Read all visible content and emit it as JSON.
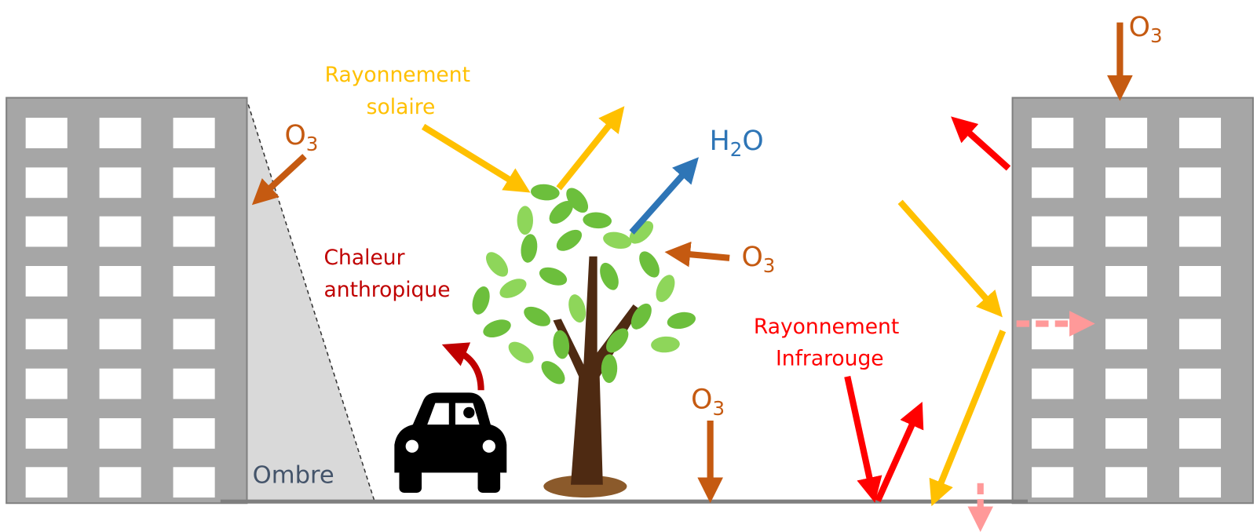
{
  "labels": {
    "solar": {
      "lines": [
        "Rayonnement",
        "solaire"
      ]
    },
    "o3_top_right": {
      "base": "O",
      "sub": "3"
    },
    "o3_left": {
      "base": "O",
      "sub": "3"
    },
    "h2o": {
      "base": "H",
      "sub": "2",
      "after": "O"
    },
    "o3_tree": {
      "base": "O",
      "sub": "3"
    },
    "o3_ground": {
      "base": "O",
      "sub": "3"
    },
    "anthropic_heat": {
      "lines": [
        "Chaleur",
        "anthropique"
      ]
    },
    "infrared": {
      "lines": [
        "Rayonnement",
        "Infrarouge"
      ]
    },
    "shadow": "Ombre"
  }
}
